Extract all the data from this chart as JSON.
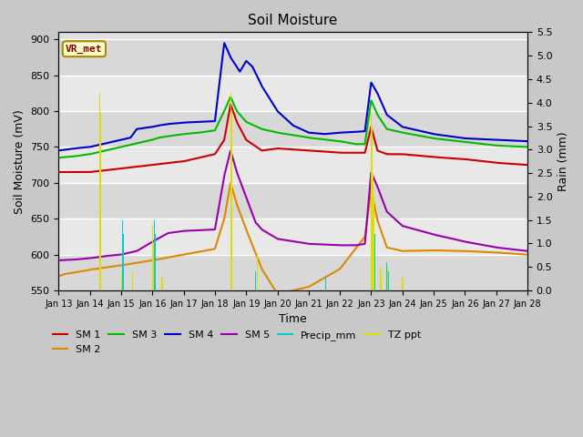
{
  "title": "Soil Moisture",
  "xlabel": "Time",
  "ylabel_left": "Soil Moisture (mV)",
  "ylabel_right": "Rain (mm)",
  "xlim_days": 15,
  "ylim_left": [
    550,
    910
  ],
  "ylim_right": [
    0,
    5.5
  ],
  "annotation_text": "VR_met",
  "tick_labels": [
    "Jan 13",
    "Jan 14",
    "Jan 15",
    "Jan 16",
    "Jan 17",
    "Jan 18",
    "Jan 19",
    "Jan 20",
    "Jan 21",
    "Jan 22",
    "Jan 23",
    "Jan 24",
    "Jan 25",
    "Jan 26",
    "Jan 27",
    "Jan 28"
  ],
  "colors": {
    "SM1": "#cc0000",
    "SM2": "#dd8800",
    "SM3": "#00bb00",
    "SM4": "#0000cc",
    "SM5": "#9900aa",
    "precip": "#00cccc",
    "tz_ppt": "#dddd00"
  },
  "legend_order": [
    "SM 1",
    "SM 2",
    "SM 3",
    "SM 4",
    "SM 5",
    "Precip_mm",
    "TZ ppt"
  ],
  "yticks_left": [
    550,
    600,
    650,
    700,
    750,
    800,
    850,
    900
  ],
  "yticks_right": [
    0.0,
    0.5,
    1.0,
    1.5,
    2.0,
    2.5,
    3.0,
    3.5,
    4.0,
    4.5,
    5.0,
    5.5
  ]
}
